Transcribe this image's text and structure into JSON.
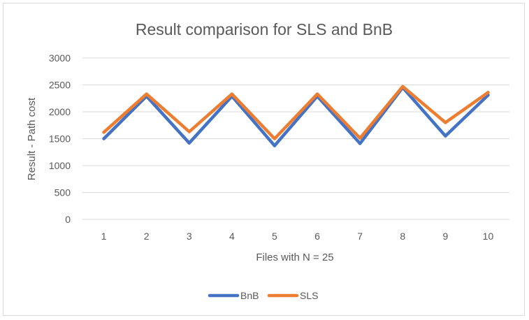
{
  "chart_data": {
    "type": "line",
    "title": "Result comparison for SLS and BnB",
    "xlabel": "Files with N = 25",
    "ylabel": "Result - Path cost",
    "categories": [
      "1",
      "2",
      "3",
      "4",
      "5",
      "6",
      "7",
      "8",
      "9",
      "10"
    ],
    "ylim": [
      0,
      3000
    ],
    "yticks": [
      "0",
      "500",
      "1000",
      "1500",
      "2000",
      "2500",
      "3000"
    ],
    "grid": true,
    "legend_position": "bottom",
    "series": [
      {
        "name": "BnB",
        "color": "#4472c4",
        "values": [
          1500,
          2290,
          1420,
          2290,
          1370,
          2290,
          1410,
          2450,
          1550,
          2310
        ]
      },
      {
        "name": "SLS",
        "color": "#ed7d31",
        "values": [
          1620,
          2330,
          1630,
          2330,
          1500,
          2330,
          1510,
          2470,
          1800,
          2360
        ]
      }
    ]
  }
}
